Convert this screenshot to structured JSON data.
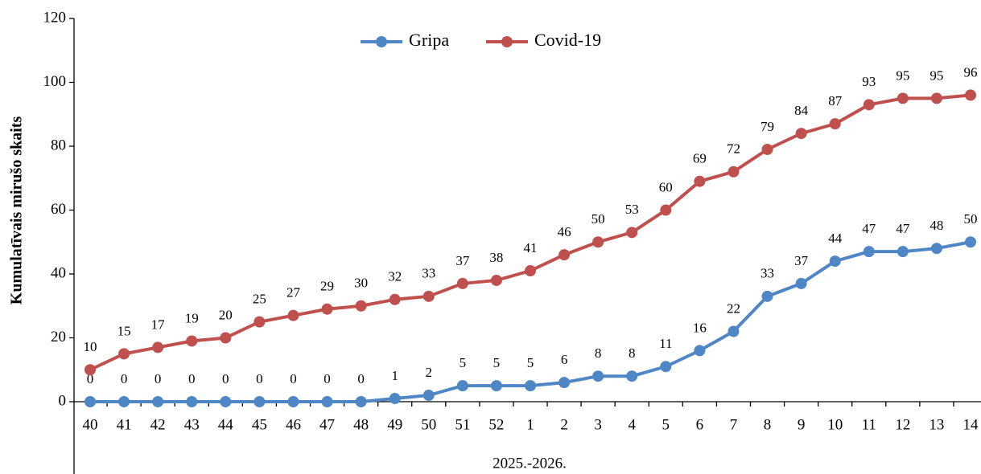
{
  "chart_data": {
    "type": "line",
    "ylabel": "Kumulatīvais mirušo skaits",
    "xlabel": "2025.-2026.",
    "categories": [
      "40",
      "41",
      "42",
      "43",
      "44",
      "45",
      "46",
      "47",
      "48",
      "49",
      "50",
      "51",
      "52",
      "1",
      "2",
      "3",
      "4",
      "5",
      "6",
      "7",
      "8",
      "9",
      "10",
      "11",
      "12",
      "13",
      "14"
    ],
    "series": [
      {
        "name": "Gripa",
        "color": "#4f86c6",
        "values": [
          0,
          0,
          0,
          0,
          0,
          0,
          0,
          0,
          0,
          1,
          2,
          5,
          5,
          5,
          6,
          8,
          8,
          11,
          16,
          22,
          33,
          37,
          44,
          47,
          47,
          48,
          50
        ]
      },
      {
        "name": "Covid-19",
        "color": "#c0504d",
        "values": [
          10,
          15,
          17,
          19,
          20,
          25,
          27,
          29,
          30,
          32,
          33,
          37,
          38,
          41,
          46,
          50,
          53,
          60,
          69,
          72,
          79,
          84,
          87,
          93,
          95,
          95,
          96
        ]
      }
    ],
    "ylim": [
      0,
      120
    ],
    "yticks": [
      0,
      20,
      40,
      60,
      80,
      100,
      120
    ],
    "legend": "top"
  }
}
